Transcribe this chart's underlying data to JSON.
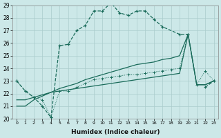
{
  "xlabel": "Humidex (Indice chaleur)",
  "bg_color": "#cce8e8",
  "grid_color": "#aacccc",
  "line_color": "#1a6b5a",
  "xlim": [
    -0.5,
    23.5
  ],
  "ylim": [
    20,
    29
  ],
  "xticks": [
    0,
    1,
    2,
    3,
    4,
    5,
    6,
    7,
    8,
    9,
    10,
    11,
    12,
    13,
    14,
    15,
    16,
    17,
    18,
    19,
    20,
    21,
    22,
    23
  ],
  "yticks": [
    20,
    21,
    22,
    23,
    24,
    25,
    26,
    27,
    28,
    29
  ],
  "line1_x": [
    0,
    1,
    2,
    3,
    4,
    5,
    6,
    7,
    8,
    9,
    10,
    11,
    12,
    13,
    14,
    15,
    16,
    17,
    19,
    20,
    21,
    22,
    23
  ],
  "line1_y": [
    23.0,
    22.2,
    21.7,
    21.0,
    20.1,
    25.8,
    25.9,
    27.0,
    27.4,
    28.55,
    28.55,
    29.2,
    28.4,
    28.2,
    28.55,
    28.55,
    27.9,
    27.3,
    26.7,
    26.7,
    null,
    22.5,
    23.0
  ],
  "line2_x": [
    0,
    1,
    2,
    3,
    4,
    5,
    6,
    7,
    8,
    9,
    10,
    11,
    12,
    13,
    14,
    15,
    16,
    17,
    18,
    19,
    20,
    21,
    22,
    23
  ],
  "line2_y": [
    21.0,
    21.0,
    21.5,
    21.8,
    22.1,
    22.4,
    22.6,
    22.8,
    23.1,
    23.3,
    23.5,
    23.7,
    23.9,
    24.1,
    24.3,
    24.4,
    24.5,
    24.7,
    24.8,
    25.0,
    26.7,
    22.7,
    22.7,
    23.0
  ],
  "line3_x": [
    0,
    1,
    2,
    3,
    4,
    5,
    6,
    7,
    8,
    9,
    10,
    11,
    12,
    13,
    14,
    15,
    16,
    17,
    18,
    19,
    20,
    21,
    22,
    23
  ],
  "line3_y": [
    21.5,
    21.5,
    21.7,
    21.9,
    22.1,
    22.2,
    22.3,
    22.4,
    22.5,
    22.6,
    22.7,
    22.8,
    22.9,
    23.0,
    23.1,
    23.2,
    23.3,
    23.4,
    23.5,
    23.6,
    26.7,
    22.7,
    22.7,
    23.0
  ],
  "line4_x": [
    0,
    1,
    2,
    3,
    4,
    5,
    6,
    7,
    8,
    9,
    10,
    11,
    12,
    13,
    14,
    15,
    16,
    17,
    18,
    19,
    20,
    21,
    22,
    23
  ],
  "line4_y": [
    23.0,
    22.2,
    21.7,
    21.5,
    20.1,
    22.2,
    22.2,
    22.5,
    22.8,
    23.1,
    23.2,
    23.3,
    23.4,
    23.5,
    23.5,
    23.6,
    23.7,
    23.8,
    23.9,
    24.0,
    26.7,
    22.7,
    23.8,
    23.0
  ]
}
